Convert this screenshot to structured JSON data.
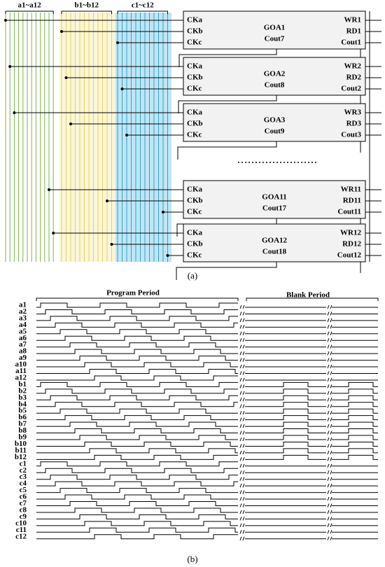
{
  "circuit": {
    "groups": [
      "a1~a12",
      "b1~b12",
      "c1~c12"
    ],
    "blocks": [
      {
        "inputs": [
          "CKa",
          "CKb",
          "CKc"
        ],
        "name": "GOA1",
        "cout_in": "Cout7",
        "outputs": [
          "WR1",
          "RD1",
          "Cout1"
        ]
      },
      {
        "inputs": [
          "CKa",
          "CKb",
          "CKc"
        ],
        "name": "GOA2",
        "cout_in": "Cout8",
        "outputs": [
          "WR2",
          "RD2",
          "Cout2"
        ]
      },
      {
        "inputs": [
          "CKa",
          "CKb",
          "CKc"
        ],
        "name": "GOA3",
        "cout_in": "Cout9",
        "outputs": [
          "WR3",
          "RD3",
          "Cout3"
        ]
      },
      {
        "inputs": [
          "CKa",
          "CKb",
          "CKc"
        ],
        "name": "GOA11",
        "cout_in": "Cout17",
        "outputs": [
          "WR11",
          "RD11",
          "Cout11"
        ]
      },
      {
        "inputs": [
          "CKa",
          "CKb",
          "CKc"
        ],
        "name": "GOA12",
        "cout_in": "Cout18",
        "outputs": [
          "WR12",
          "RD12",
          "Cout12"
        ]
      }
    ],
    "caption": "(a)"
  },
  "timing": {
    "periods": [
      "Program Period",
      "Blank Period"
    ],
    "signals": [
      "a1",
      "a2",
      "a3",
      "a4",
      "a5",
      "a6",
      "a7",
      "a8",
      "a9",
      "a10",
      "a11",
      "a12",
      "b1",
      "b2",
      "b3",
      "b4",
      "b5",
      "b6",
      "b7",
      "b8",
      "b9",
      "b10",
      "b11",
      "b12",
      "c1",
      "c2",
      "c3",
      "c4",
      "c5",
      "c6",
      "c7",
      "c8",
      "c9",
      "c10",
      "c11",
      "c12"
    ],
    "caption": "(b)"
  }
}
